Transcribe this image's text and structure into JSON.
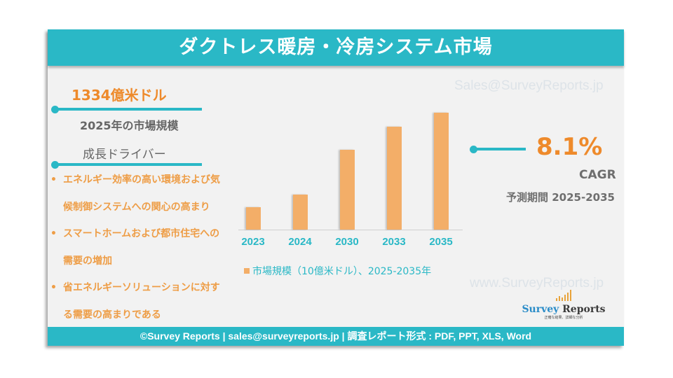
{
  "header": {
    "title": "ダクトレス暖房・冷房システム市場"
  },
  "watermarks": {
    "email": "Sales@SurveyReports.jp",
    "website": "www.SurveyReports.jp"
  },
  "market": {
    "value": "1334億米ドル",
    "label": "2025年の市場規模"
  },
  "drivers": {
    "label": "成長ドライバー",
    "bullet": "•",
    "lines": [
      {
        "text": "エネルギー効率の高い環境および気",
        "bullet": true
      },
      {
        "text": "候制御システムへの関心の高まり",
        "bullet": false
      },
      {
        "text": "スマートホームおよび都市住宅への",
        "bullet": true
      },
      {
        "text": "需要の増加",
        "bullet": false
      },
      {
        "text": "省エネルギーソリューションに対す",
        "bullet": true
      },
      {
        "text": "る需要の高まりである",
        "bullet": false
      }
    ]
  },
  "cagr": {
    "value": "8.1%",
    "label": "CAGR",
    "period": "予測期間 2025-2035"
  },
  "logo": {
    "name_a": "Survey",
    "name_b": " Reports",
    "tagline": "正確な結果、詳細な分析"
  },
  "footer": {
    "text": "©Survey Reports | sales@surveyreports.jp |  調査レポート形式 : PDF, PPT, XLS, Word"
  },
  "colors": {
    "teal": "#2ab8c6",
    "orange": "#ee8a2b",
    "bar": "#f3ae68",
    "background": "#f2f2f2"
  },
  "chart_data": {
    "type": "bar",
    "title": "",
    "categories": [
      "2023",
      "2024",
      "2030",
      "2033",
      "2035"
    ],
    "series": [
      {
        "name": "市場規模（10億米ドル）、2025-2035年",
        "values": [
          32,
          50,
          114,
          147,
          167
        ]
      }
    ],
    "xlabel": "",
    "ylabel": "",
    "y_axis_shown": false,
    "grid": false,
    "legend_position": "bottom",
    "note": "Values are relative bar heights (no y-axis labels shown)"
  }
}
